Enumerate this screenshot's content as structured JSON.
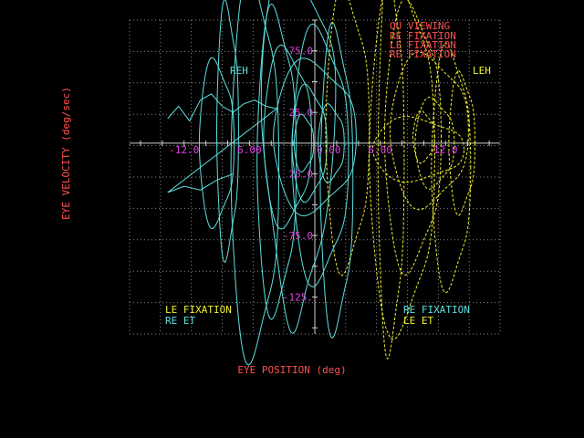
{
  "chart_data": {
    "type": "line",
    "title": "",
    "xlabel": "EYE POSITION (deg)",
    "ylabel": "EYE VELOCITY (deg/sec)",
    "xlim": [
      -17,
      17
    ],
    "ylim": [
      -155,
      100
    ],
    "grid": true,
    "x_tick_labels": [
      {
        "value": -12,
        "text": "-12.0"
      },
      {
        "value": -6,
        "text": "6.00"
      },
      {
        "value": 6,
        "text": "6.00"
      },
      {
        "value": 12,
        "text": "12.0"
      }
    ],
    "y_tick_labels": [
      {
        "value": 75,
        "text": "75.0"
      },
      {
        "value": 25,
        "text": "25.0"
      },
      {
        "value": -25,
        "text": "25.0"
      },
      {
        "value": -75,
        "text": "-75.0"
      },
      {
        "value": -125,
        "text": "-125."
      }
    ],
    "center_label": "0.00",
    "annotations": {
      "top_right": [
        "OU VIEWING",
        "RE FIXATION",
        "LE FIXATION",
        "RE FIXATION"
      ],
      "reh": "REH",
      "leh": "LEH",
      "bottom_left": [
        "LE FIXATION",
        "RE ET"
      ],
      "bottom_right": [
        "RE FIXATION",
        "LE ET"
      ]
    },
    "series": [
      {
        "color": "#5ee0e0",
        "loops": [
          {
            "cx": -1.5,
            "cy": -5,
            "rx": 3.2,
            "ry": 140,
            "skew": 0.2
          },
          {
            "cx": -2.5,
            "cy": 5,
            "rx": 2.2,
            "ry": 70
          },
          {
            "cx": -0.5,
            "cy": 0,
            "rx": 1.6,
            "ry": 45
          },
          {
            "cx": 0.5,
            "cy": -10,
            "rx": 2.6,
            "ry": 100
          },
          {
            "cx": -3.5,
            "cy": -15,
            "rx": 1.8,
            "ry": 120
          },
          {
            "cx": 1.5,
            "cy": 0,
            "rx": 1.2,
            "ry": 30
          },
          {
            "cx": -9,
            "cy": 0,
            "rx": 1.6,
            "ry": 65
          },
          {
            "cx": -8,
            "cy": 10,
            "rx": 1.0,
            "ry": 100
          },
          {
            "cx": -5.5,
            "cy": -20,
            "rx": 2.2,
            "ry": 150
          },
          {
            "cx": 0,
            "cy": 5,
            "rx": 3.8,
            "ry": 60
          },
          {
            "cx": -1,
            "cy": 0,
            "rx": 0.9,
            "ry": 22
          },
          {
            "cx": 2,
            "cy": -30,
            "rx": 1.5,
            "ry": 120
          }
        ],
        "trace": [
          [
            -13.5,
            20
          ],
          [
            -12.5,
            30
          ],
          [
            -11.5,
            18
          ],
          [
            -10.5,
            35
          ],
          [
            -9.5,
            40
          ],
          [
            -8.5,
            30
          ],
          [
            -7.5,
            25
          ],
          [
            -6.5,
            32
          ],
          [
            -5.5,
            35
          ],
          [
            -4.5,
            30
          ],
          [
            -3.5,
            28
          ],
          [
            -13.5,
            -40
          ],
          [
            -12,
            -35
          ],
          [
            -10.5,
            -38
          ],
          [
            -9,
            -30
          ],
          [
            -7.5,
            -25
          ]
        ]
      },
      {
        "color": "#f0f030",
        "loops": [
          {
            "cx": 9,
            "cy": 5,
            "rx": 2.6,
            "ry": 105
          },
          {
            "cx": 10.5,
            "cy": 10,
            "rx": 3.6,
            "ry": 60
          },
          {
            "cx": 11,
            "cy": 0,
            "rx": 1.8,
            "ry": 35
          },
          {
            "cx": 8,
            "cy": -10,
            "rx": 3.0,
            "ry": 140
          },
          {
            "cx": 12.5,
            "cy": -20,
            "rx": 1.8,
            "ry": 95
          },
          {
            "cx": 7,
            "cy": -15,
            "rx": 1.2,
            "ry": 150
          },
          {
            "cx": 3,
            "cy": 10,
            "rx": 2.0,
            "ry": 110
          },
          {
            "cx": 10,
            "cy": 5,
            "rx": 1.0,
            "ry": 20
          },
          {
            "cx": 13.5,
            "cy": 0,
            "rx": 1.2,
            "ry": 55
          },
          {
            "cx": 9.5,
            "cy": -5,
            "rx": 4.2,
            "ry": 25
          }
        ],
        "trace": []
      }
    ]
  }
}
